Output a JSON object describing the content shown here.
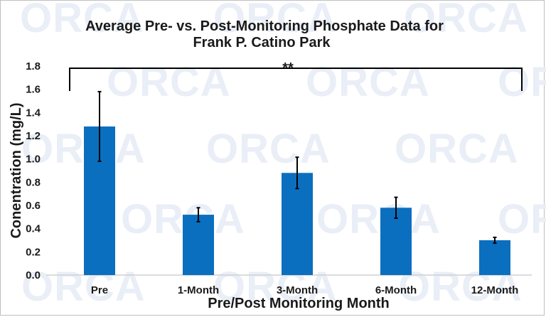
{
  "watermark_text": "ORCA",
  "chart_data": {
    "type": "bar",
    "title_lines": [
      "Average Pre- vs. Post-Monitoring Phosphate Data for",
      "Frank P. Catino Park"
    ],
    "xlabel": "Pre/Post Monitoring Month",
    "ylabel": "Conentration (mg/L)",
    "categories": [
      "Pre",
      "1-Month",
      "3-Month",
      "6-Month",
      "12-Month"
    ],
    "values": [
      1.28,
      0.52,
      0.88,
      0.58,
      0.3
    ],
    "error": [
      0.3,
      0.06,
      0.135,
      0.09,
      0.025
    ],
    "ylim": [
      0,
      1.8
    ],
    "yticks": [
      "0.0",
      "0.2",
      "0.4",
      "0.6",
      "0.8",
      "1.0",
      "1.2",
      "1.4",
      "1.6",
      "1.8"
    ],
    "bar_color": "#0b6fc0",
    "significance": {
      "label": "**",
      "from": "Pre",
      "to": "12-Month",
      "y": 1.8
    },
    "grid": false,
    "legend": "none"
  }
}
